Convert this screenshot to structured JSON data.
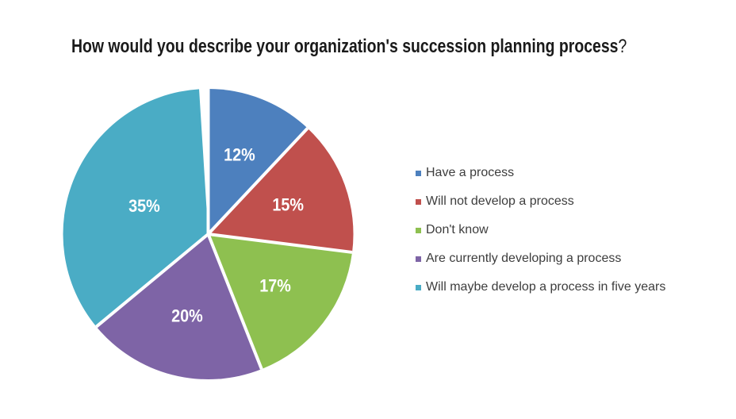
{
  "title": {
    "text": "How would you describe your organization's succession planning process",
    "suffix": "?"
  },
  "chart_data": {
    "type": "pie",
    "title": "How would you describe your organization's succession planning process?",
    "start_angle_deg": 0,
    "direction": "clockwise",
    "legend_position": "right",
    "data_labels": "percent inside slices",
    "slices": [
      {
        "label": "Have a process",
        "value": 12,
        "display": "12%",
        "color": "#4d80be"
      },
      {
        "label": "Will not develop a process",
        "value": 15,
        "display": "15%",
        "color": "#c0504d"
      },
      {
        "label": "Don't know",
        "value": 17,
        "display": "17%",
        "color": "#8ec050"
      },
      {
        "label": "Are currently developing a process",
        "value": 20,
        "display": "20%",
        "color": "#7e64a6"
      },
      {
        "label": "Will maybe develop a process in five years",
        "value": 35,
        "display": "35%",
        "color": "#4aacc5"
      }
    ]
  },
  "style": {
    "background": "#ffffff",
    "title_color": "#1a1a1a",
    "legend_text_color": "#3d3d3d",
    "slice_label_color": "#ffffff",
    "separator_color": "#ffffff"
  }
}
